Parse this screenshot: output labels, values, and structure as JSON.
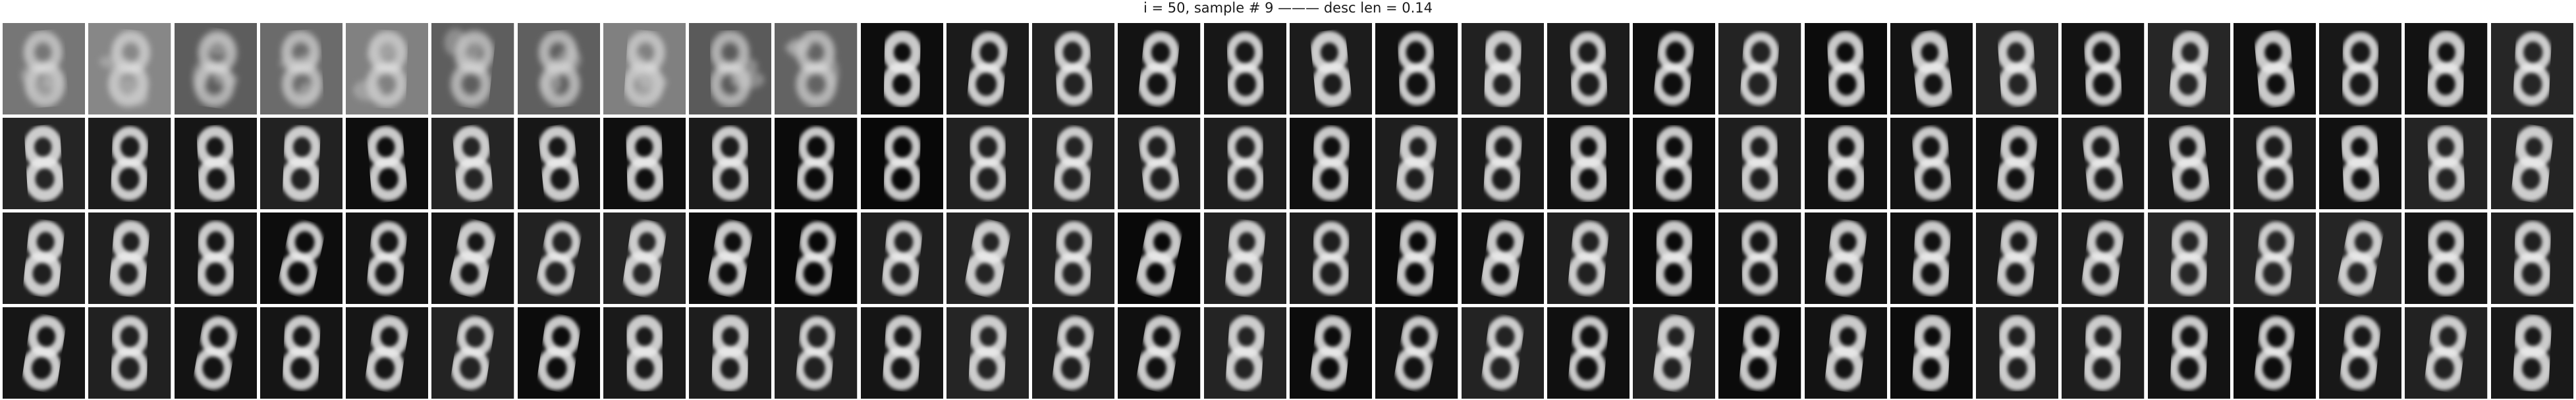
{
  "title": "i = 50, sample # 9 ——— desc len = 0.14",
  "grid": {
    "rows": 4,
    "cols": 30,
    "content": "handwritten digit 8 reconstruction"
  },
  "colors": {
    "background": "#ffffff",
    "tile_dark": "#111111",
    "stroke": "#e6e6e6"
  }
}
